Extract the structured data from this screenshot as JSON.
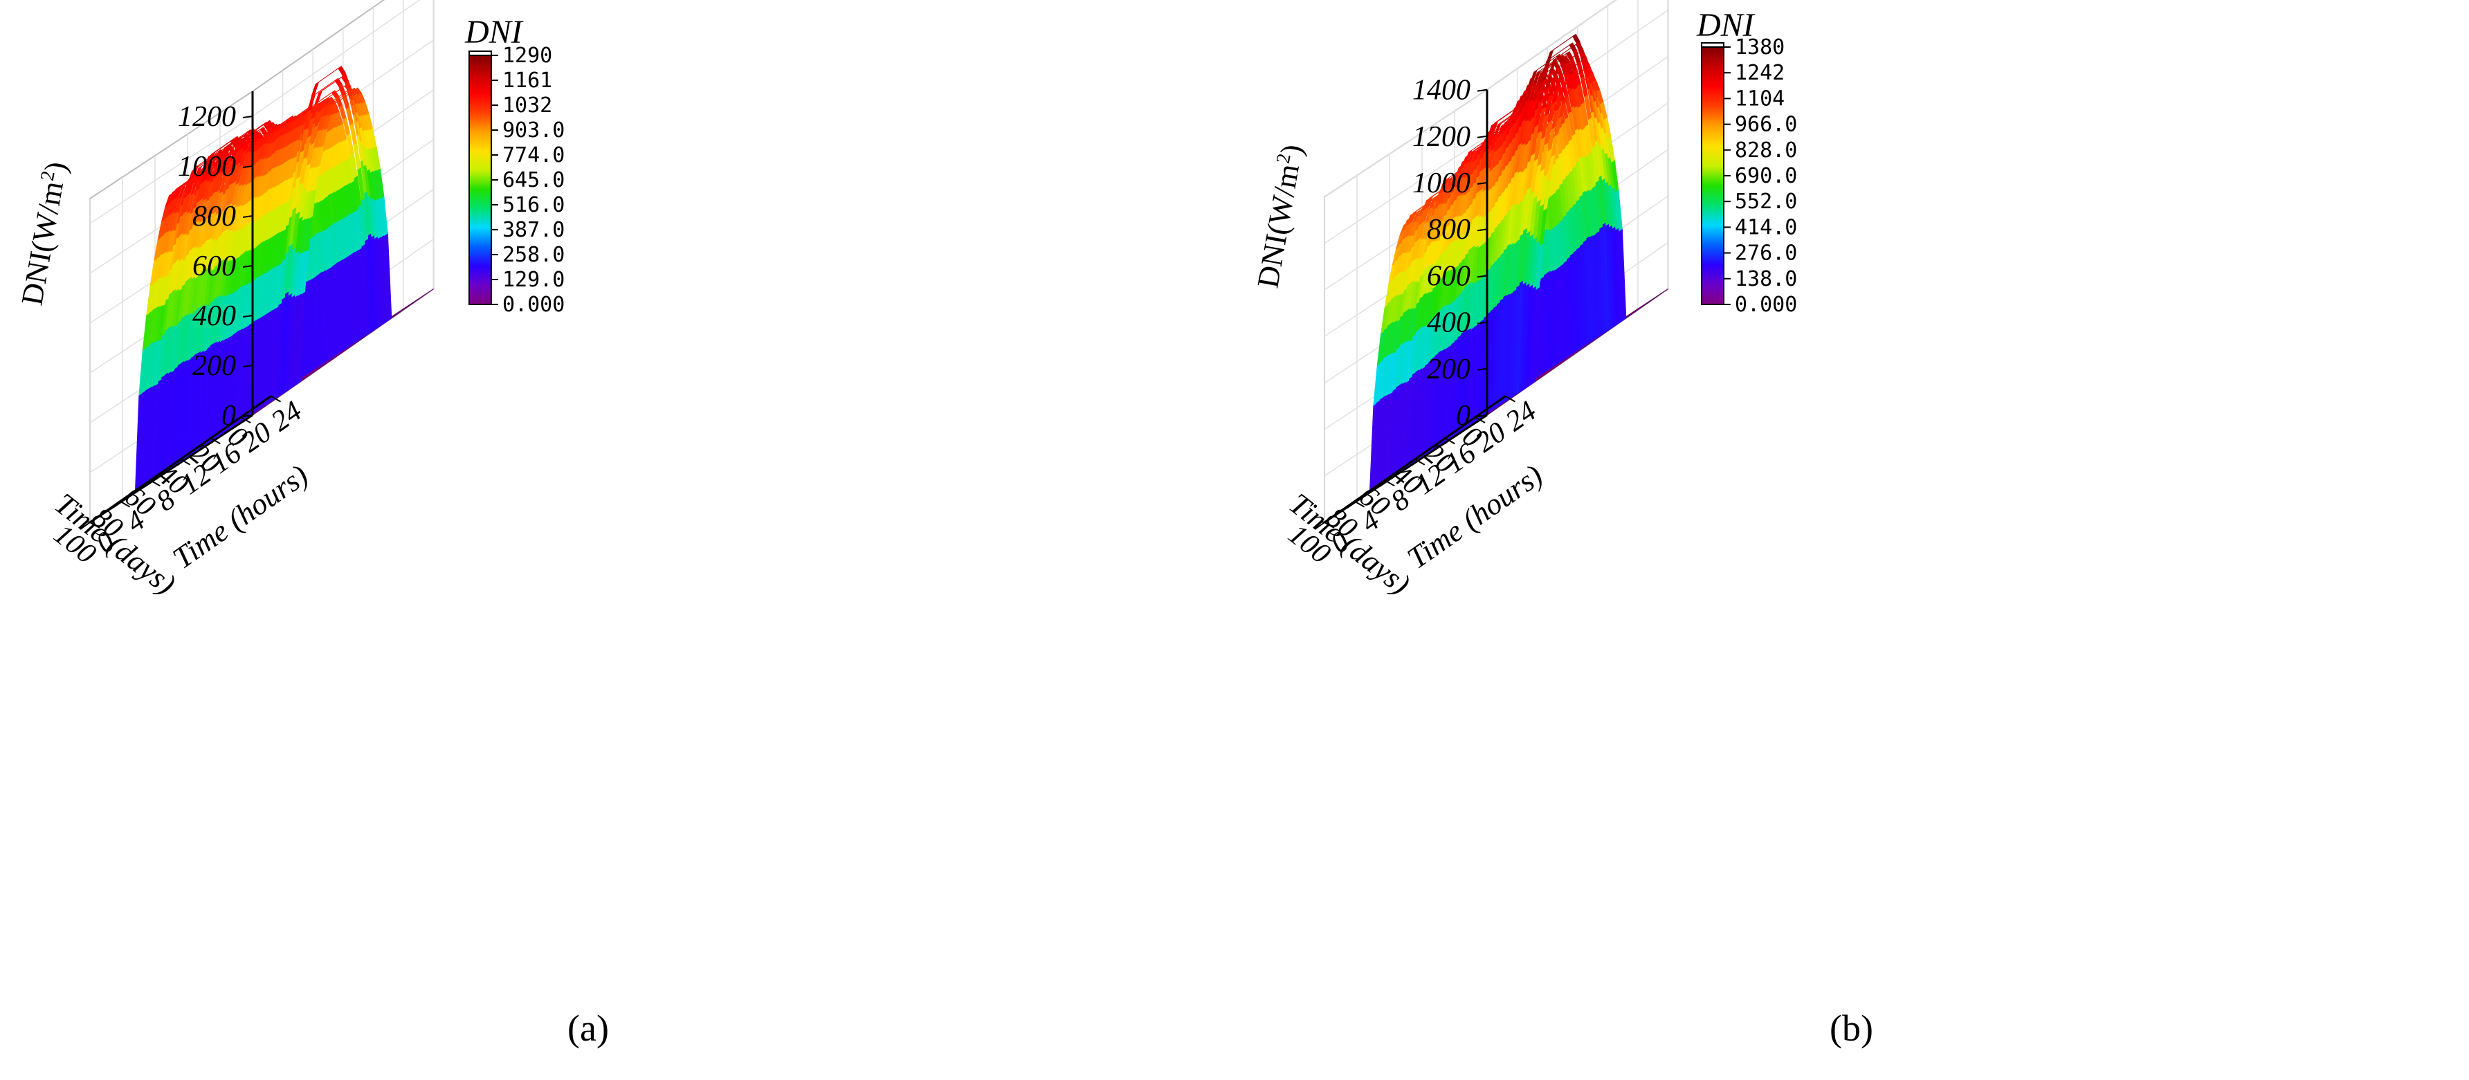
{
  "chart_data": [
    {
      "panel_label": "(a)",
      "type": "surface3d",
      "zlabel_main": "DNI(W/m",
      "zlabel_sup": "2",
      "zlabel_tail": ")",
      "xlabel": "Time (days)",
      "ylabel": "Time (hours)",
      "x_ticks": [
        "0",
        "20",
        "40",
        "60",
        "80",
        "100"
      ],
      "y_ticks": [
        "0",
        "4",
        "8",
        "12",
        "16",
        "20",
        "24"
      ],
      "z_ticks": [
        "0",
        "200",
        "400",
        "600",
        "800",
        "1000",
        "1200"
      ],
      "xlim": [
        0,
        100
      ],
      "ylim": [
        0,
        24
      ],
      "zlim": [
        0,
        1300
      ],
      "colorbar_title": "DNI",
      "colorbar_ticks": [
        "0.000",
        "129.0",
        "258.0",
        "387.0",
        "516.0",
        "645.0",
        "774.0",
        "903.0",
        "1032",
        "1161",
        "1290"
      ],
      "colorbar_range": [
        0,
        1290
      ],
      "peak_profile": {
        "x": [
          0,
          5,
          10,
          15,
          20,
          25,
          30,
          35,
          40,
          45,
          50,
          55,
          60,
          65,
          70,
          75,
          80,
          85,
          90,
          95,
          100
        ],
        "peak_dni": [
          1020,
          1040,
          1150,
          1050,
          1060,
          1060,
          1070,
          1060,
          1080,
          1070,
          1090,
          1130,
          1100,
          1140,
          1120,
          1150,
          1110,
          1140,
          1080,
          1100,
          1090
        ]
      },
      "daylight_hours": [
        6,
        18
      ],
      "colors": {
        "stops": [
          "#800080",
          "#6a00c8",
          "#2a00ff",
          "#0060ff",
          "#00d8ff",
          "#00e070",
          "#20e000",
          "#c8f000",
          "#ffe000",
          "#ffa000",
          "#ff4000",
          "#ff0000",
          "#c80000",
          "#800000"
        ]
      }
    },
    {
      "panel_label": "(b)",
      "type": "surface3d",
      "zlabel_main": "DNI(W/m",
      "zlabel_sup": "2",
      "zlabel_tail": ")",
      "xlabel": "Time (days)",
      "ylabel": "Time (hours)",
      "x_ticks": [
        "0",
        "20",
        "40",
        "60",
        "80",
        "100"
      ],
      "y_ticks": [
        "0",
        "4",
        "8",
        "12",
        "16",
        "20",
        "24"
      ],
      "z_ticks": [
        "0",
        "200",
        "400",
        "600",
        "800",
        "1000",
        "1200",
        "1400"
      ],
      "xlim": [
        0,
        100
      ],
      "ylim": [
        0,
        24
      ],
      "zlim": [
        0,
        1400
      ],
      "colorbar_title": "DNI",
      "colorbar_ticks": [
        "0.000",
        "138.0",
        "276.0",
        "414.0",
        "552.0",
        "690.0",
        "828.0",
        "966.0",
        "1104",
        "1242",
        "1380"
      ],
      "colorbar_range": [
        0,
        1380
      ],
      "peak_profile": {
        "x": [
          0,
          5,
          10,
          15,
          20,
          25,
          30,
          35,
          40,
          45,
          50,
          55,
          60,
          65,
          70,
          75,
          80,
          85,
          90,
          95,
          100
        ],
        "peak_dni": [
          1150,
          1260,
          1370,
          1300,
          1330,
          1280,
          1250,
          1200,
          1190,
          1230,
          1180,
          1150,
          1170,
          1140,
          1100,
          1120,
          1060,
          1090,
          1050,
          1070,
          1040
        ]
      },
      "daylight_hours": [
        6,
        18
      ],
      "colors": {
        "stops": [
          "#800080",
          "#6a00c8",
          "#2a00ff",
          "#0060ff",
          "#00d8ff",
          "#00e070",
          "#20e000",
          "#c8f000",
          "#ffe000",
          "#ffa000",
          "#ff4000",
          "#ff0000",
          "#c80000",
          "#800000"
        ]
      }
    }
  ]
}
